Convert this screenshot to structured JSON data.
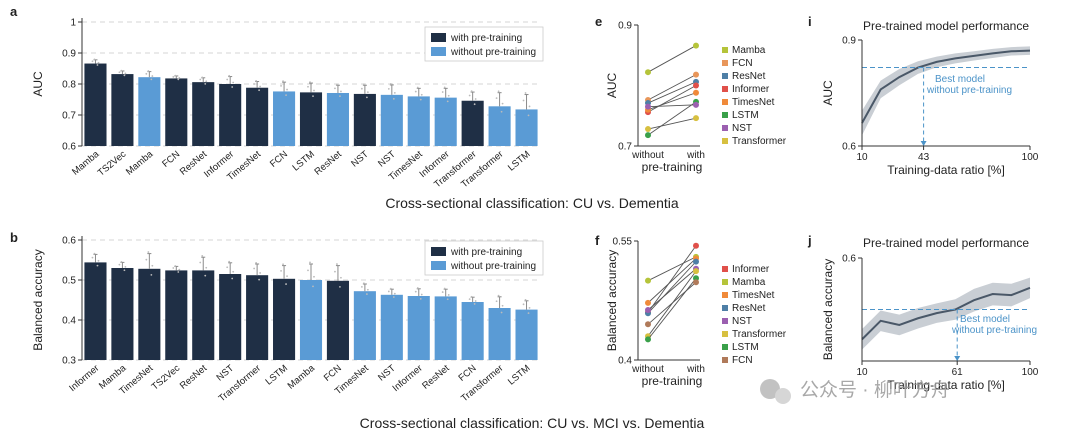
{
  "colors": {
    "pre": "#1f2f45",
    "without": "#5a9bd5",
    "grey_band": "#c9ced4",
    "curve": "#4a5868",
    "dash_blue": "#4b93c8"
  },
  "chart_data": [
    {
      "panel": "a",
      "type": "bar",
      "ylabel": "AUC",
      "ylim": [
        0.6,
        1.0
      ],
      "yticks": [
        "0.6",
        "0.7",
        "0.8",
        "0.9",
        "1"
      ],
      "legend": [
        "with pre-training",
        "without pre-training"
      ],
      "caption": "Cross-sectional classification: CU vs. Dementia",
      "categories": [
        "Mamba",
        "TS2Vec",
        "Mamba",
        "FCN",
        "ResNet",
        "Informer",
        "TimesNet",
        "FCN",
        "LSTM",
        "ResNet",
        "NST",
        "NST",
        "TimesNet",
        "Informer",
        "Transformer",
        "Transformer",
        "LSTM"
      ],
      "values": [
        0.866,
        0.832,
        0.822,
        0.818,
        0.806,
        0.8,
        0.788,
        0.776,
        0.773,
        0.771,
        0.768,
        0.765,
        0.76,
        0.756,
        0.746,
        0.728,
        0.718
      ],
      "errors": [
        0.012,
        0.01,
        0.018,
        0.008,
        0.014,
        0.024,
        0.02,
        0.03,
        0.03,
        0.025,
        0.028,
        0.032,
        0.026,
        0.03,
        0.028,
        0.044,
        0.048
      ],
      "pretrained": [
        true,
        true,
        false,
        true,
        true,
        true,
        true,
        false,
        true,
        false,
        true,
        false,
        false,
        false,
        true,
        false,
        false
      ]
    },
    {
      "panel": "b",
      "type": "bar",
      "ylabel": "Balanced accuracy",
      "ylim": [
        0.3,
        0.6
      ],
      "yticks": [
        "0.3",
        "0.4",
        "0.5",
        "0.6"
      ],
      "legend": [
        "with pre-training",
        "without pre-training"
      ],
      "caption": "Cross-sectional classification: CU vs. MCI vs. Dementia",
      "categories": [
        "Informer",
        "Mamba",
        "TimesNet",
        "TS2Vec",
        "ResNet",
        "NST",
        "Transformer",
        "LSTM",
        "Mamba",
        "FCN",
        "TimesNet",
        "NST",
        "Informer",
        "ResNet",
        "FCN",
        "Transformer",
        "LSTM"
      ],
      "values": [
        0.544,
        0.53,
        0.528,
        0.524,
        0.524,
        0.515,
        0.512,
        0.503,
        0.5,
        0.498,
        0.472,
        0.463,
        0.46,
        0.459,
        0.445,
        0.43,
        0.426
      ],
      "errors": [
        0.02,
        0.014,
        0.038,
        0.01,
        0.033,
        0.028,
        0.028,
        0.033,
        0.04,
        0.038,
        0.018,
        0.014,
        0.018,
        0.018,
        0.012,
        0.028,
        0.022
      ],
      "pretrained": [
        true,
        true,
        true,
        true,
        true,
        true,
        true,
        true,
        false,
        true,
        false,
        false,
        false,
        false,
        false,
        false,
        false
      ]
    },
    {
      "panel": "e",
      "type": "line",
      "ylabel": "AUC",
      "ylim": [
        0.7,
        0.9
      ],
      "yticks": [
        "0.7",
        "0.9"
      ],
      "categories": [
        "without",
        "with"
      ],
      "xlabel": "pre-training",
      "series": [
        {
          "name": "Mamba",
          "color": "#b5c43a",
          "values": [
            0.822,
            0.866
          ]
        },
        {
          "name": "FCN",
          "color": "#e8965a",
          "values": [
            0.776,
            0.818
          ]
        },
        {
          "name": "ResNet",
          "color": "#4e7fa6",
          "values": [
            0.771,
            0.806
          ]
        },
        {
          "name": "Informer",
          "color": "#e0504a",
          "values": [
            0.756,
            0.8
          ]
        },
        {
          "name": "TimesNet",
          "color": "#f08a3a",
          "values": [
            0.76,
            0.788
          ]
        },
        {
          "name": "LSTM",
          "color": "#3aa04a",
          "values": [
            0.718,
            0.773
          ]
        },
        {
          "name": "NST",
          "color": "#9b5fb0",
          "values": [
            0.765,
            0.768
          ]
        },
        {
          "name": "Transformer",
          "color": "#d7c040",
          "values": [
            0.728,
            0.746
          ]
        }
      ]
    },
    {
      "panel": "f",
      "type": "line",
      "ylabel": "Balanced accuracy",
      "ylim": [
        0.4,
        0.55
      ],
      "yticks": [
        "0.4",
        "0.55"
      ],
      "categories": [
        "without",
        "with"
      ],
      "xlabel": "pre-training",
      "series": [
        {
          "name": "Informer",
          "color": "#e0504a",
          "values": [
            0.46,
            0.544
          ]
        },
        {
          "name": "Mamba",
          "color": "#b5c43a",
          "values": [
            0.5,
            0.53
          ]
        },
        {
          "name": "TimesNet",
          "color": "#f08a3a",
          "values": [
            0.472,
            0.528
          ]
        },
        {
          "name": "ResNet",
          "color": "#4e7fa6",
          "values": [
            0.459,
            0.524
          ]
        },
        {
          "name": "NST",
          "color": "#9b5fb0",
          "values": [
            0.463,
            0.515
          ]
        },
        {
          "name": "Transformer",
          "color": "#d7c040",
          "values": [
            0.43,
            0.512
          ]
        },
        {
          "name": "LSTM",
          "color": "#3aa04a",
          "values": [
            0.426,
            0.503
          ]
        },
        {
          "name": "FCN",
          "color": "#b07a5a",
          "values": [
            0.445,
            0.498
          ]
        }
      ]
    },
    {
      "panel": "i",
      "type": "area",
      "title": "Pre-trained model performance",
      "ylabel": "AUC",
      "xlabel": "Training-data ratio [%]",
      "ylim": [
        0.6,
        0.9
      ],
      "yticks": [
        "0.6",
        "0.9"
      ],
      "xticks": [
        "10",
        "43",
        "100"
      ],
      "x": [
        10,
        20,
        30,
        40,
        50,
        60,
        70,
        80,
        90,
        100
      ],
      "mean": [
        0.665,
        0.76,
        0.795,
        0.822,
        0.838,
        0.848,
        0.855,
        0.862,
        0.868,
        0.87
      ],
      "upper": [
        0.7,
        0.785,
        0.818,
        0.84,
        0.853,
        0.862,
        0.868,
        0.875,
        0.88,
        0.882
      ],
      "lower": [
        0.63,
        0.735,
        0.772,
        0.804,
        0.823,
        0.834,
        0.842,
        0.849,
        0.856,
        0.858
      ],
      "baseline": 0.822,
      "crossing_x": 43,
      "annotation": [
        "Best model",
        "without pre-training"
      ]
    },
    {
      "panel": "j",
      "type": "area",
      "title": "Pre-trained model performance",
      "ylabel": "Balanced accuracy",
      "xlabel": "Training-data ratio [%]",
      "ylim": [
        0.4,
        0.6
      ],
      "yticks": [
        "0.6"
      ],
      "xticks": [
        "10",
        "61",
        "100"
      ],
      "x": [
        10,
        20,
        30,
        40,
        50,
        60,
        70,
        80,
        90,
        100
      ],
      "mean": [
        0.442,
        0.478,
        0.47,
        0.483,
        0.493,
        0.5,
        0.518,
        0.53,
        0.528,
        0.542
      ],
      "upper": [
        0.462,
        0.498,
        0.49,
        0.503,
        0.512,
        0.52,
        0.54,
        0.552,
        0.55,
        0.562
      ],
      "lower": [
        0.422,
        0.458,
        0.45,
        0.463,
        0.474,
        0.48,
        0.496,
        0.508,
        0.506,
        0.522
      ],
      "baseline": 0.5,
      "crossing_x": 61,
      "annotation": [
        "Best model",
        "without pre-training"
      ]
    }
  ],
  "watermark": {
    "text": "公众号 · 柳叶方舟",
    "icon": "wechat-icon"
  }
}
